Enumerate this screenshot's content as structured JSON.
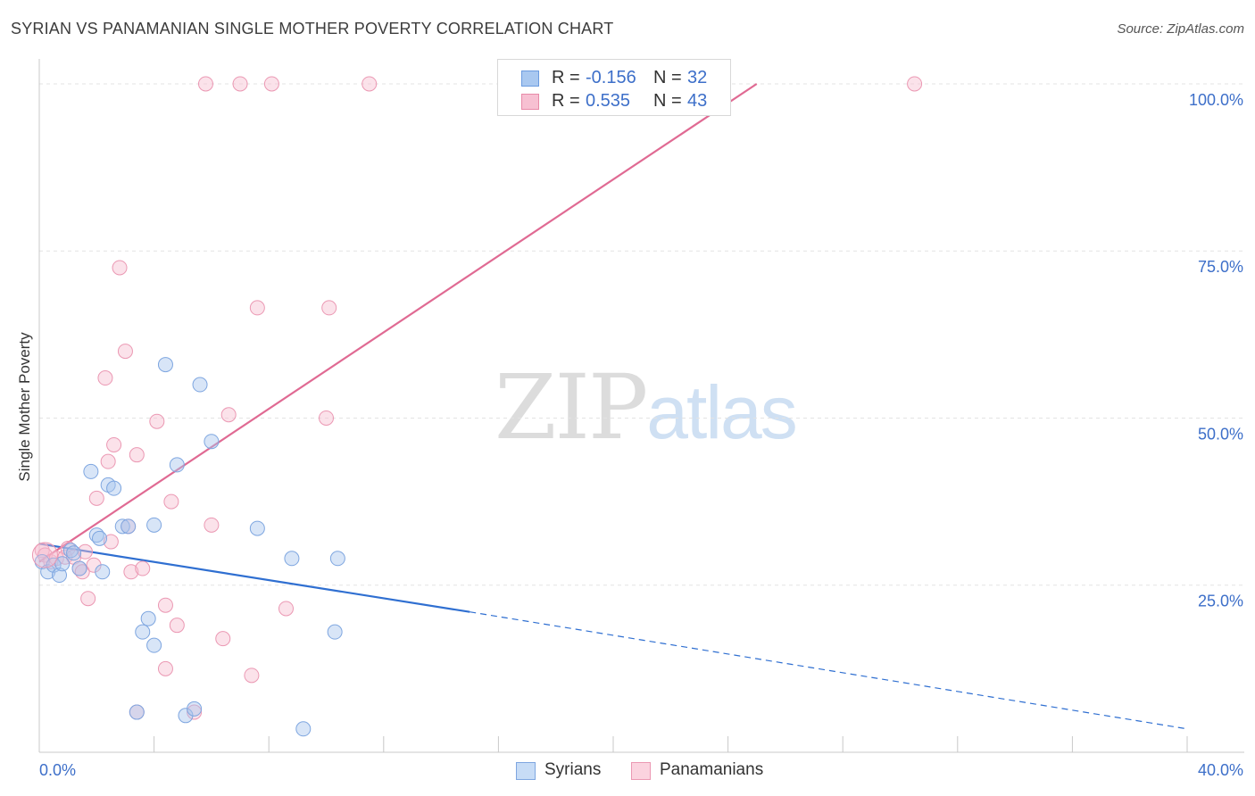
{
  "title": "SYRIAN VS PANAMANIAN SINGLE MOTHER POVERTY CORRELATION CHART",
  "source": "Source: ZipAtlas.com",
  "watermark": {
    "part1": "ZIP",
    "part2": "atlas"
  },
  "legend": {
    "rows": [
      {
        "r_label": "R =",
        "r_value": "-0.156",
        "n_label": "N =",
        "n_value": "32",
        "color": "#a9c8f0",
        "border": "#6b9be0"
      },
      {
        "r_label": "R =",
        "r_value": "0.535",
        "n_label": "N =",
        "n_value": "43",
        "color": "#f7c0d2",
        "border": "#e88aa8"
      }
    ]
  },
  "bottom_legend": [
    {
      "name": "Syrians",
      "color": "#c7dcf6",
      "border": "#7ea6e0"
    },
    {
      "name": "Panamanians",
      "color": "#fbd3df",
      "border": "#eb98b3"
    }
  ],
  "colors": {
    "syrian_fill": "rgba(168,198,238,0.45)",
    "syrian_stroke": "#7ea6e0",
    "syrian_line": "#2f6fd1",
    "panamanian_fill": "rgba(246,190,208,0.45)",
    "panamanian_stroke": "#eb98b3",
    "panamanian_line": "#e06a93",
    "grid": "#e3e3e3",
    "axis_text": "#3d6fc9"
  },
  "chart_data": {
    "type": "scatter",
    "title": "SYRIAN VS PANAMANIAN SINGLE MOTHER POVERTY CORRELATION CHART",
    "xlabel": "",
    "ylabel": "Single Mother Poverty",
    "xlim": [
      0,
      40
    ],
    "ylim": [
      0,
      102
    ],
    "x_tick_labels": [
      "0.0%",
      "40.0%"
    ],
    "y_ticks": [
      25,
      50,
      75,
      100
    ],
    "y_tick_labels": [
      "25.0%",
      "50.0%",
      "75.0%",
      "100.0%"
    ],
    "grid": true,
    "legend_position": "top-center",
    "series": [
      {
        "name": "Syrians",
        "points": [
          [
            0.1,
            28.5
          ],
          [
            0.3,
            27.0
          ],
          [
            0.5,
            28.0
          ],
          [
            0.7,
            26.5
          ],
          [
            0.8,
            28.2
          ],
          [
            1.1,
            30.2
          ],
          [
            1.2,
            29.8
          ],
          [
            1.4,
            27.5
          ],
          [
            1.8,
            42.0
          ],
          [
            2.0,
            32.5
          ],
          [
            2.1,
            32.0
          ],
          [
            2.2,
            27.0
          ],
          [
            2.4,
            40.0
          ],
          [
            2.6,
            39.5
          ],
          [
            2.9,
            33.8
          ],
          [
            3.1,
            33.8
          ],
          [
            3.4,
            6.0
          ],
          [
            3.6,
            18.0
          ],
          [
            3.8,
            20.0
          ],
          [
            4.0,
            16.0
          ],
          [
            4.0,
            34.0
          ],
          [
            4.4,
            58.0
          ],
          [
            4.8,
            43.0
          ],
          [
            5.1,
            5.5
          ],
          [
            5.4,
            6.5
          ],
          [
            5.6,
            55.0
          ],
          [
            6.0,
            46.5
          ],
          [
            7.6,
            33.5
          ],
          [
            8.8,
            29.0
          ],
          [
            9.2,
            3.5
          ],
          [
            10.3,
            18.0
          ],
          [
            10.4,
            29.0
          ]
        ],
        "trend": {
          "x": [
            0,
            15
          ],
          "y": [
            31.2,
            21.0
          ]
        },
        "trend_extension": {
          "x": [
            15,
            40
          ],
          "y": [
            21.0,
            3.5
          ]
        }
      },
      {
        "name": "Panamanians",
        "points": [
          [
            0.1,
            30.2
          ],
          [
            0.2,
            29.5
          ],
          [
            0.4,
            28.5
          ],
          [
            0.6,
            29.0
          ],
          [
            0.9,
            29.2
          ],
          [
            1.0,
            30.5
          ],
          [
            1.2,
            29.2
          ],
          [
            1.4,
            27.5
          ],
          [
            1.5,
            27.0
          ],
          [
            1.6,
            30.0
          ],
          [
            1.7,
            23.0
          ],
          [
            1.9,
            28.0
          ],
          [
            2.0,
            38.0
          ],
          [
            2.3,
            56.0
          ],
          [
            2.4,
            43.5
          ],
          [
            2.5,
            31.5
          ],
          [
            2.6,
            46.0
          ],
          [
            2.8,
            72.5
          ],
          [
            3.0,
            60.0
          ],
          [
            3.2,
            27.0
          ],
          [
            3.4,
            44.5
          ],
          [
            3.4,
            6.0
          ],
          [
            3.6,
            27.5
          ],
          [
            4.1,
            49.5
          ],
          [
            4.4,
            22.0
          ],
          [
            4.4,
            12.5
          ],
          [
            4.6,
            37.5
          ],
          [
            4.8,
            19.0
          ],
          [
            5.4,
            6.0
          ],
          [
            5.8,
            100.0
          ],
          [
            6.0,
            34.0
          ],
          [
            6.4,
            17.0
          ],
          [
            6.6,
            50.5
          ],
          [
            7.0,
            100.0
          ],
          [
            7.4,
            11.5
          ],
          [
            7.6,
            66.5
          ],
          [
            8.1,
            100.0
          ],
          [
            8.6,
            21.5
          ],
          [
            10.0,
            50.0
          ],
          [
            10.1,
            66.5
          ],
          [
            11.5,
            100.0
          ],
          [
            30.5,
            100.0
          ],
          [
            3.1,
            33.8
          ]
        ],
        "trend": {
          "x": [
            0,
            25
          ],
          "y": [
            28.5,
            100.0
          ]
        }
      }
    ]
  }
}
